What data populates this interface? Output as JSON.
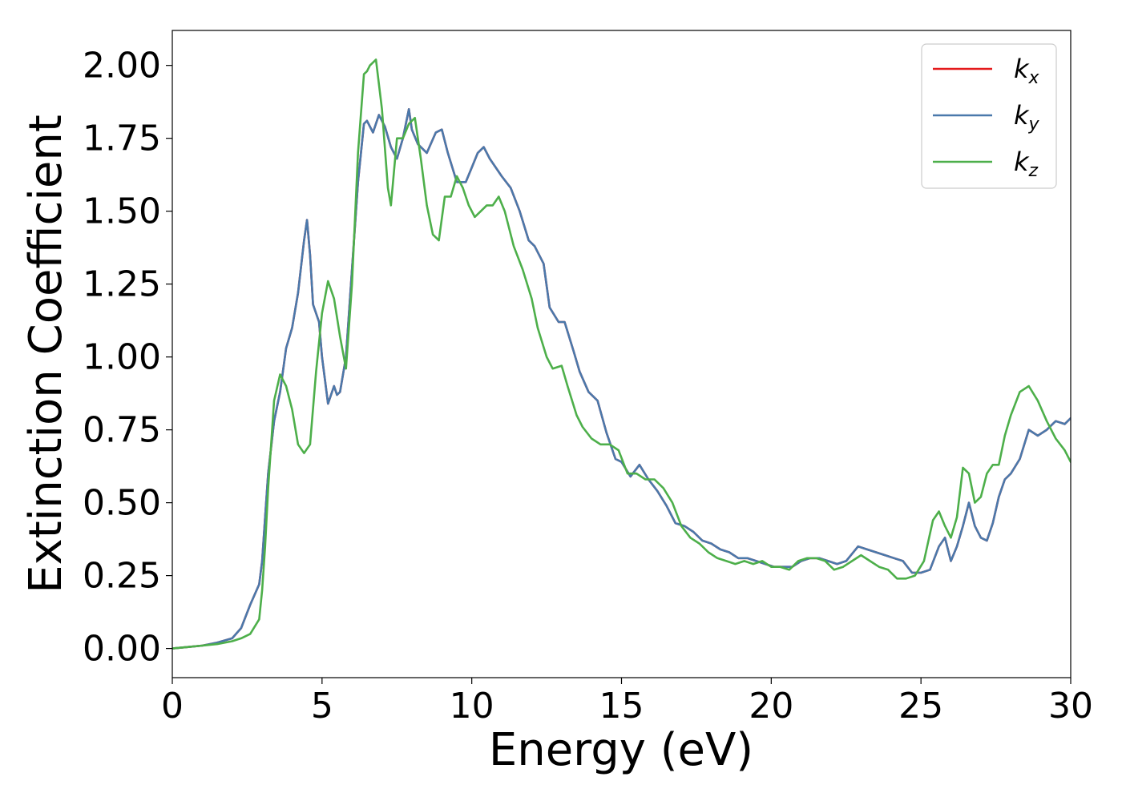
{
  "chart_data": {
    "type": "line",
    "xlabel": "Energy (eV)",
    "ylabel": "Extinction Coefficient",
    "xlim": [
      0,
      30
    ],
    "ylim": [
      -0.1,
      2.12
    ],
    "xticks": [
      0,
      5,
      10,
      15,
      20,
      25,
      30
    ],
    "yticks": [
      0.0,
      0.25,
      0.5,
      0.75,
      1.0,
      1.25,
      1.5,
      1.75,
      2.0
    ],
    "xtick_labels": [
      "0",
      "5",
      "10",
      "15",
      "20",
      "25",
      "30"
    ],
    "ytick_labels": [
      "0.00",
      "0.25",
      "0.50",
      "0.75",
      "1.00",
      "1.25",
      "1.50",
      "1.75",
      "2.00"
    ],
    "grid": false,
    "legend_position": "top-right",
    "series": [
      {
        "name": "kx",
        "label_base": "k",
        "label_sub": "x",
        "color": "#e41a1c",
        "x": [
          0,
          0.5,
          1,
          1.5,
          2,
          2.3,
          2.6,
          2.9,
          3.0,
          3.1,
          3.2,
          3.4,
          3.6,
          3.8,
          4.0,
          4.2,
          4.4,
          4.5,
          4.6,
          4.7,
          4.9,
          5.0,
          5.2,
          5.4,
          5.5,
          5.6,
          5.8,
          6.0,
          6.2,
          6.4,
          6.5,
          6.7,
          6.9,
          7.1,
          7.3,
          7.5,
          7.7,
          7.9,
          8.0,
          8.2,
          8.5,
          8.8,
          9.0,
          9.2,
          9.5,
          9.8,
          10.0,
          10.2,
          10.4,
          10.6,
          10.8,
          11.0,
          11.3,
          11.6,
          11.9,
          12.1,
          12.4,
          12.6,
          12.9,
          13.1,
          13.4,
          13.6,
          13.9,
          14.2,
          14.5,
          14.8,
          15.0,
          15.3,
          15.6,
          15.9,
          16.2,
          16.5,
          16.8,
          17.1,
          17.4,
          17.7,
          18.0,
          18.3,
          18.6,
          18.9,
          19.2,
          19.5,
          19.8,
          20.1,
          20.4,
          20.7,
          21.0,
          21.3,
          21.6,
          21.9,
          22.2,
          22.5,
          22.9,
          23.2,
          23.5,
          23.8,
          24.1,
          24.4,
          24.7,
          25.0,
          25.3,
          25.6,
          25.8,
          26.0,
          26.2,
          26.4,
          26.6,
          26.8,
          27.0,
          27.2,
          27.4,
          27.6,
          27.8,
          28.0,
          28.3,
          28.6,
          28.9,
          29.2,
          29.5,
          29.8,
          30.0
        ],
        "y": [
          0.0,
          0.005,
          0.01,
          0.02,
          0.035,
          0.07,
          0.15,
          0.22,
          0.3,
          0.45,
          0.6,
          0.78,
          0.88,
          1.03,
          1.1,
          1.22,
          1.4,
          1.47,
          1.35,
          1.18,
          1.12,
          1.0,
          0.84,
          0.9,
          0.87,
          0.88,
          1.0,
          1.3,
          1.6,
          1.8,
          1.81,
          1.77,
          1.83,
          1.79,
          1.72,
          1.68,
          1.75,
          1.85,
          1.78,
          1.73,
          1.7,
          1.77,
          1.78,
          1.7,
          1.6,
          1.6,
          1.65,
          1.7,
          1.72,
          1.68,
          1.65,
          1.62,
          1.58,
          1.5,
          1.4,
          1.38,
          1.32,
          1.17,
          1.12,
          1.12,
          1.02,
          0.95,
          0.88,
          0.85,
          0.74,
          0.65,
          0.64,
          0.59,
          0.63,
          0.58,
          0.54,
          0.49,
          0.43,
          0.42,
          0.4,
          0.37,
          0.36,
          0.34,
          0.33,
          0.31,
          0.31,
          0.3,
          0.29,
          0.28,
          0.28,
          0.28,
          0.3,
          0.31,
          0.31,
          0.3,
          0.29,
          0.3,
          0.35,
          0.34,
          0.33,
          0.32,
          0.31,
          0.3,
          0.26,
          0.26,
          0.27,
          0.35,
          0.38,
          0.3,
          0.35,
          0.42,
          0.5,
          0.42,
          0.38,
          0.37,
          0.43,
          0.52,
          0.58,
          0.6,
          0.65,
          0.75,
          0.73,
          0.75,
          0.78,
          0.77,
          0.79
        ]
      },
      {
        "name": "ky",
        "label_base": "k",
        "label_sub": "y",
        "color": "#4a79ab",
        "x": [
          0,
          0.5,
          1,
          1.5,
          2,
          2.3,
          2.6,
          2.9,
          3.0,
          3.1,
          3.2,
          3.4,
          3.6,
          3.8,
          4.0,
          4.2,
          4.4,
          4.5,
          4.6,
          4.7,
          4.9,
          5.0,
          5.2,
          5.4,
          5.5,
          5.6,
          5.8,
          6.0,
          6.2,
          6.4,
          6.5,
          6.7,
          6.9,
          7.1,
          7.3,
          7.5,
          7.7,
          7.9,
          8.0,
          8.2,
          8.5,
          8.8,
          9.0,
          9.2,
          9.5,
          9.8,
          10.0,
          10.2,
          10.4,
          10.6,
          10.8,
          11.0,
          11.3,
          11.6,
          11.9,
          12.1,
          12.4,
          12.6,
          12.9,
          13.1,
          13.4,
          13.6,
          13.9,
          14.2,
          14.5,
          14.8,
          15.0,
          15.3,
          15.6,
          15.9,
          16.2,
          16.5,
          16.8,
          17.1,
          17.4,
          17.7,
          18.0,
          18.3,
          18.6,
          18.9,
          19.2,
          19.5,
          19.8,
          20.1,
          20.4,
          20.7,
          21.0,
          21.3,
          21.6,
          21.9,
          22.2,
          22.5,
          22.9,
          23.2,
          23.5,
          23.8,
          24.1,
          24.4,
          24.7,
          25.0,
          25.3,
          25.6,
          25.8,
          26.0,
          26.2,
          26.4,
          26.6,
          26.8,
          27.0,
          27.2,
          27.4,
          27.6,
          27.8,
          28.0,
          28.3,
          28.6,
          28.9,
          29.2,
          29.5,
          29.8,
          30.0
        ],
        "y": [
          0.0,
          0.005,
          0.01,
          0.02,
          0.035,
          0.07,
          0.15,
          0.22,
          0.3,
          0.45,
          0.6,
          0.78,
          0.88,
          1.03,
          1.1,
          1.22,
          1.4,
          1.47,
          1.35,
          1.18,
          1.12,
          1.0,
          0.84,
          0.9,
          0.87,
          0.88,
          1.0,
          1.3,
          1.6,
          1.8,
          1.81,
          1.77,
          1.83,
          1.79,
          1.72,
          1.68,
          1.75,
          1.85,
          1.78,
          1.73,
          1.7,
          1.77,
          1.78,
          1.7,
          1.6,
          1.6,
          1.65,
          1.7,
          1.72,
          1.68,
          1.65,
          1.62,
          1.58,
          1.5,
          1.4,
          1.38,
          1.32,
          1.17,
          1.12,
          1.12,
          1.02,
          0.95,
          0.88,
          0.85,
          0.74,
          0.65,
          0.64,
          0.59,
          0.63,
          0.58,
          0.54,
          0.49,
          0.43,
          0.42,
          0.4,
          0.37,
          0.36,
          0.34,
          0.33,
          0.31,
          0.31,
          0.3,
          0.29,
          0.28,
          0.28,
          0.28,
          0.3,
          0.31,
          0.31,
          0.3,
          0.29,
          0.3,
          0.35,
          0.34,
          0.33,
          0.32,
          0.31,
          0.3,
          0.26,
          0.26,
          0.27,
          0.35,
          0.38,
          0.3,
          0.35,
          0.42,
          0.5,
          0.42,
          0.38,
          0.37,
          0.43,
          0.52,
          0.58,
          0.6,
          0.65,
          0.75,
          0.73,
          0.75,
          0.78,
          0.77,
          0.79
        ]
      },
      {
        "name": "kz",
        "label_base": "k",
        "label_sub": "z",
        "color": "#4daf4a",
        "x": [
          0,
          0.5,
          1,
          1.5,
          2,
          2.3,
          2.6,
          2.9,
          3.0,
          3.1,
          3.2,
          3.4,
          3.6,
          3.8,
          4.0,
          4.2,
          4.4,
          4.6,
          4.8,
          5.0,
          5.2,
          5.4,
          5.6,
          5.8,
          6.0,
          6.2,
          6.4,
          6.5,
          6.6,
          6.8,
          7.0,
          7.2,
          7.3,
          7.5,
          7.7,
          7.9,
          8.1,
          8.3,
          8.5,
          8.7,
          8.9,
          9.1,
          9.3,
          9.5,
          9.7,
          9.9,
          10.1,
          10.3,
          10.5,
          10.7,
          10.9,
          11.1,
          11.4,
          11.7,
          12.0,
          12.2,
          12.5,
          12.7,
          13.0,
          13.2,
          13.5,
          13.7,
          14.0,
          14.3,
          14.6,
          14.9,
          15.2,
          15.5,
          15.8,
          16.1,
          16.4,
          16.7,
          17.0,
          17.3,
          17.6,
          17.9,
          18.2,
          18.5,
          18.8,
          19.1,
          19.4,
          19.7,
          20.0,
          20.3,
          20.6,
          20.9,
          21.2,
          21.5,
          21.8,
          22.1,
          22.4,
          22.7,
          23.0,
          23.3,
          23.6,
          23.9,
          24.2,
          24.5,
          24.8,
          25.1,
          25.4,
          25.6,
          25.8,
          26.0,
          26.2,
          26.4,
          26.6,
          26.8,
          27.0,
          27.2,
          27.4,
          27.6,
          27.8,
          28.0,
          28.3,
          28.6,
          28.9,
          29.2,
          29.5,
          29.8,
          30.0
        ],
        "y": [
          0.0,
          0.005,
          0.01,
          0.015,
          0.025,
          0.035,
          0.05,
          0.1,
          0.2,
          0.35,
          0.55,
          0.85,
          0.94,
          0.9,
          0.82,
          0.7,
          0.67,
          0.7,
          0.95,
          1.15,
          1.26,
          1.2,
          1.07,
          0.96,
          1.25,
          1.7,
          1.97,
          1.98,
          2.0,
          2.02,
          1.85,
          1.58,
          1.52,
          1.75,
          1.75,
          1.8,
          1.82,
          1.68,
          1.52,
          1.42,
          1.4,
          1.55,
          1.55,
          1.62,
          1.58,
          1.52,
          1.48,
          1.5,
          1.52,
          1.52,
          1.55,
          1.5,
          1.38,
          1.3,
          1.2,
          1.1,
          1.0,
          0.96,
          0.97,
          0.9,
          0.8,
          0.76,
          0.72,
          0.7,
          0.7,
          0.68,
          0.6,
          0.6,
          0.58,
          0.58,
          0.55,
          0.5,
          0.42,
          0.38,
          0.36,
          0.33,
          0.31,
          0.3,
          0.29,
          0.3,
          0.29,
          0.3,
          0.28,
          0.28,
          0.27,
          0.3,
          0.31,
          0.31,
          0.3,
          0.27,
          0.28,
          0.3,
          0.32,
          0.3,
          0.28,
          0.27,
          0.24,
          0.24,
          0.25,
          0.3,
          0.44,
          0.47,
          0.42,
          0.38,
          0.45,
          0.62,
          0.6,
          0.5,
          0.52,
          0.6,
          0.63,
          0.63,
          0.73,
          0.8,
          0.88,
          0.9,
          0.85,
          0.78,
          0.72,
          0.68,
          0.64
        ]
      }
    ]
  }
}
